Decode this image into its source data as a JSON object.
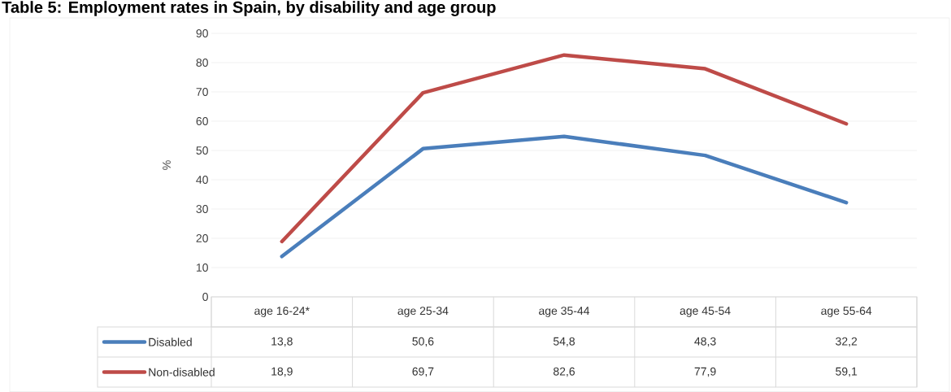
{
  "chart_data": {
    "type": "line",
    "title": "Table 5: Employment rates in Spain, by disability and age group",
    "ylabel": "%",
    "categories": [
      "age 16-24*",
      "age 25-34",
      "age 35-44",
      "age 45-54",
      "age 55-64"
    ],
    "series": [
      {
        "name": "Disabled",
        "color": "#4a7ebb",
        "values": [
          13.8,
          50.6,
          54.8,
          48.3,
          32.2
        ],
        "value_labels": [
          "13,8",
          "50,6",
          "54,8",
          "48,3",
          "32,2"
        ]
      },
      {
        "name": "Non-disabled",
        "color": "#be4b48",
        "values": [
          18.9,
          69.7,
          82.6,
          77.9,
          59.1
        ],
        "value_labels": [
          "18,9",
          "69,7",
          "82,6",
          "77,9",
          "59,1"
        ]
      }
    ],
    "ylim": [
      0,
      90
    ],
    "yticks": [
      0,
      10,
      20,
      30,
      40,
      50,
      60,
      70,
      80,
      90
    ],
    "grid": "y",
    "legend": "bottom"
  }
}
